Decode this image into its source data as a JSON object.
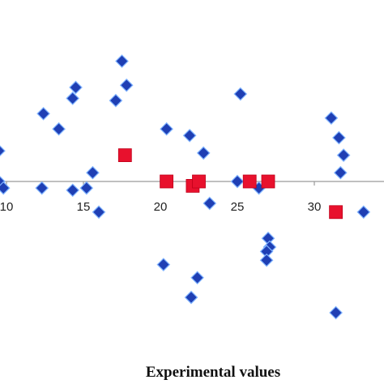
{
  "chart_data": {
    "type": "scatter",
    "title": "",
    "xlabel": "Experimental values",
    "ylabel": "",
    "xlim": [
      9.5,
      33.8
    ],
    "ylim": [
      -6.6,
      5.7
    ],
    "x_ticks": [
      10,
      15,
      20,
      25,
      30
    ],
    "x_tick_labels": [
      "10",
      "15",
      "20",
      "25",
      "30"
    ],
    "zero_line": true,
    "grid": false,
    "legend": "none",
    "series": [
      {
        "marker": "diamond",
        "color": "#1f3fb4",
        "points": [
          [
            9.5,
            1.4
          ],
          [
            9.5,
            0.0
          ],
          [
            9.8,
            -0.3
          ],
          [
            12.4,
            3.1
          ],
          [
            12.3,
            -0.3
          ],
          [
            13.4,
            2.4
          ],
          [
            14.3,
            3.8
          ],
          [
            14.5,
            4.3
          ],
          [
            14.3,
            -0.4
          ],
          [
            15.2,
            -0.3
          ],
          [
            15.6,
            0.4
          ],
          [
            16.0,
            -1.4
          ],
          [
            17.1,
            3.7
          ],
          [
            17.5,
            5.5
          ],
          [
            17.8,
            4.4
          ],
          [
            20.4,
            2.4
          ],
          [
            20.2,
            -3.8
          ],
          [
            21.9,
            2.1
          ],
          [
            22.0,
            -5.3
          ],
          [
            22.4,
            -4.4
          ],
          [
            22.8,
            1.3
          ],
          [
            23.2,
            -1.0
          ],
          [
            25.2,
            4.0
          ],
          [
            25.0,
            0.0
          ],
          [
            26.4,
            -0.3
          ],
          [
            27.0,
            -2.6
          ],
          [
            27.1,
            -3.0
          ],
          [
            26.9,
            -3.2
          ],
          [
            26.9,
            -3.6
          ],
          [
            31.1,
            2.9
          ],
          [
            31.6,
            2.0
          ],
          [
            31.9,
            1.2
          ],
          [
            31.7,
            0.4
          ],
          [
            31.4,
            -6.0
          ],
          [
            33.2,
            -1.4
          ]
        ]
      },
      {
        "marker": "square",
        "color": "#e8112d",
        "points": [
          [
            17.7,
            1.2
          ],
          [
            20.4,
            0.0
          ],
          [
            22.1,
            -0.2
          ],
          [
            22.5,
            0.0
          ],
          [
            25.8,
            0.0
          ],
          [
            27.0,
            0.0
          ],
          [
            31.4,
            -1.4
          ]
        ]
      }
    ]
  }
}
